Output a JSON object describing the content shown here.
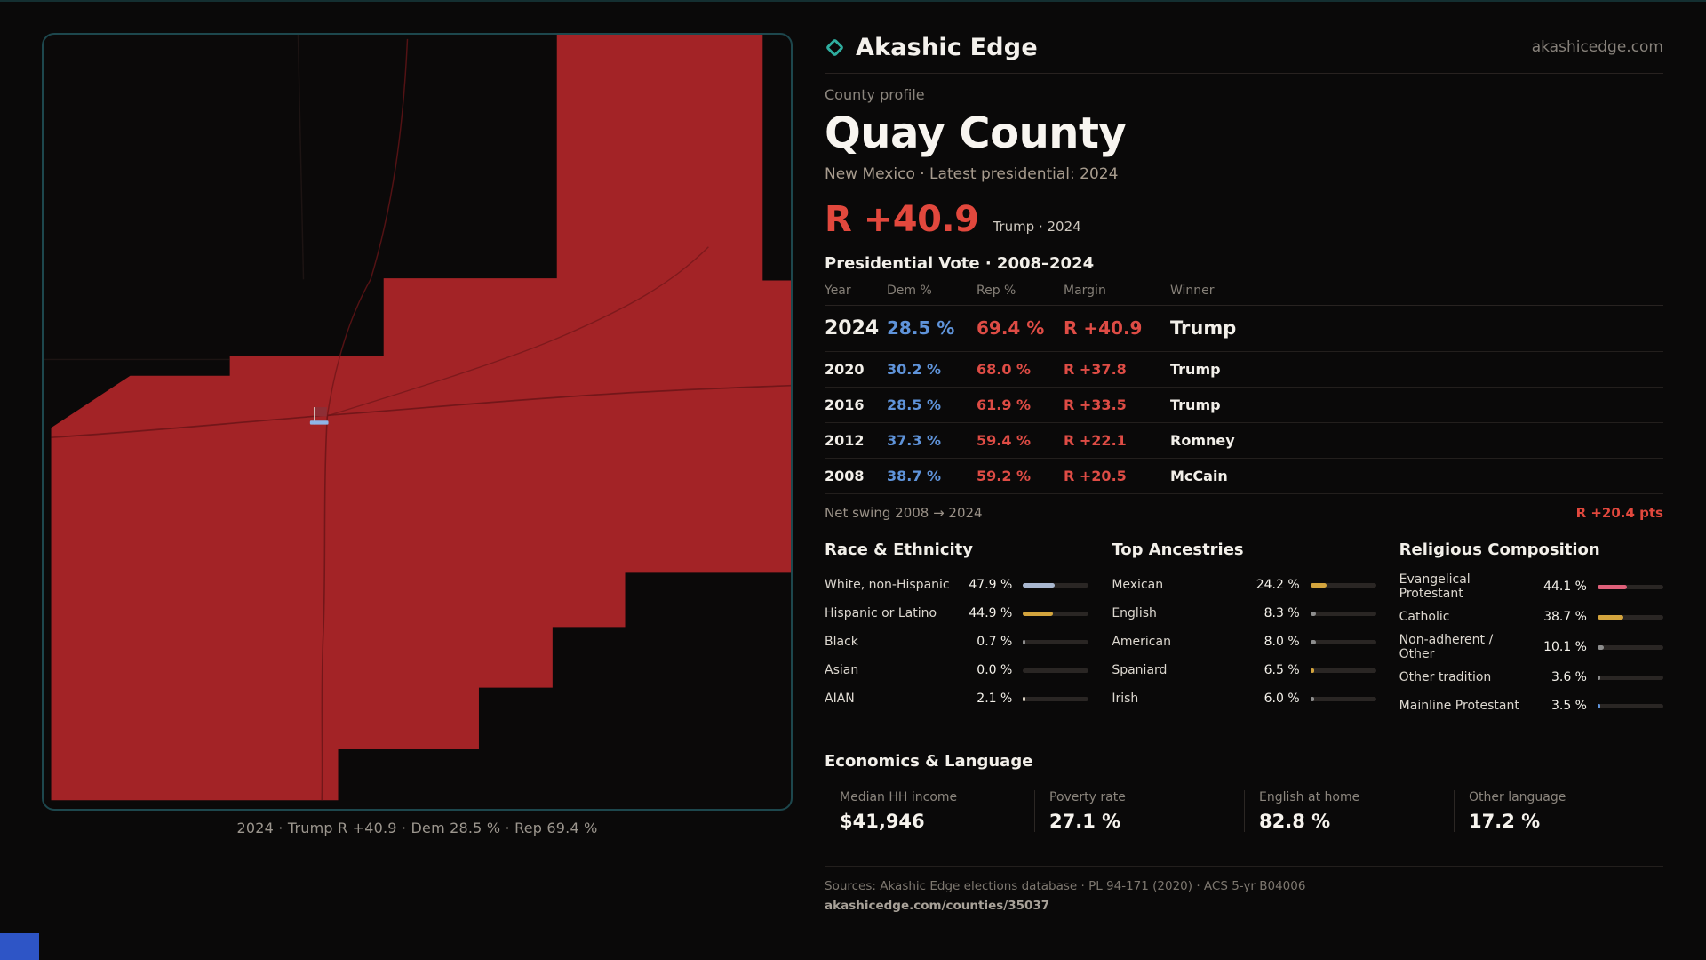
{
  "brand": {
    "name": "Akashic Edge",
    "domain": "akashicedge.com",
    "logo": "diamond-icon",
    "accent_teal": "#2fae9f"
  },
  "colors": {
    "map_red": "#a32326",
    "headline_red": "#e2483d",
    "rep_red": "#de4c45",
    "dem_blue": "#5f93d9",
    "gold": "#d3a43d",
    "steel": "#a9b7cf",
    "pink": "#e0607a"
  },
  "map": {
    "caption": "2024 · Trump R +40.9 · Dem 28.5 % · Rep 69.4 %"
  },
  "profile": {
    "kicker": "County profile",
    "title": "Quay County",
    "subtitle": "New Mexico · Latest presidential: 2024",
    "headline_margin": "R +40.9",
    "headline_note": "Trump · 2024",
    "table_title": "Presidential Vote · 2008–2024"
  },
  "vote_table": {
    "columns": [
      "Year",
      "Dem %",
      "Rep %",
      "Margin",
      "Winner"
    ],
    "rows": [
      {
        "year": "2024",
        "dem": "28.5 %",
        "rep": "69.4 %",
        "margin": "R +40.9",
        "winner": "Trump",
        "highlight": true
      },
      {
        "year": "2020",
        "dem": "30.2 %",
        "rep": "68.0 %",
        "margin": "R +37.8",
        "winner": "Trump",
        "highlight": false
      },
      {
        "year": "2016",
        "dem": "28.5 %",
        "rep": "61.9 %",
        "margin": "R +33.5",
        "winner": "Trump",
        "highlight": false
      },
      {
        "year": "2012",
        "dem": "37.3 %",
        "rep": "59.4 %",
        "margin": "R +22.1",
        "winner": "Romney",
        "highlight": false
      },
      {
        "year": "2008",
        "dem": "38.7 %",
        "rep": "59.2 %",
        "margin": "R +20.5",
        "winner": "McCain",
        "highlight": false
      }
    ],
    "net_swing_label": "Net swing 2008 → 2024",
    "net_swing_value": "R +20.4 pts"
  },
  "demographics": [
    {
      "title": "Race & Ethnicity",
      "rows": [
        {
          "label": "White, non-Hispanic",
          "value": "47.9 %",
          "pct": 47.9,
          "color": "#a9b7cf"
        },
        {
          "label": "Hispanic or Latino",
          "value": "44.9 %",
          "pct": 44.9,
          "color": "#d3a43d"
        },
        {
          "label": "Black",
          "value": "0.7 %",
          "pct": 0.7,
          "color": "#8d8d8d"
        },
        {
          "label": "Asian",
          "value": "0.0 %",
          "pct": 0.0,
          "color": "#8d8d8d"
        },
        {
          "label": "AIAN",
          "value": "2.1 %",
          "pct": 2.1,
          "color": "#d9d0c2"
        }
      ]
    },
    {
      "title": "Top Ancestries",
      "rows": [
        {
          "label": "Mexican",
          "value": "24.2 %",
          "pct": 24.2,
          "color": "#d3a43d"
        },
        {
          "label": "English",
          "value": "8.3 %",
          "pct": 8.3,
          "color": "#8d8d8d"
        },
        {
          "label": "American",
          "value": "8.0 %",
          "pct": 8.0,
          "color": "#8d8d8d"
        },
        {
          "label": "Spaniard",
          "value": "6.5 %",
          "pct": 6.5,
          "color": "#d3a43d"
        },
        {
          "label": "Irish",
          "value": "6.0 %",
          "pct": 6.0,
          "color": "#8d8d8d"
        }
      ]
    },
    {
      "title": "Religious Composition",
      "rows": [
        {
          "label": "Evangelical Protestant",
          "value": "44.1 %",
          "pct": 44.1,
          "color": "#e0607a"
        },
        {
          "label": "Catholic",
          "value": "38.7 %",
          "pct": 38.7,
          "color": "#d3a43d"
        },
        {
          "label": "Non-adherent / Other",
          "value": "10.1 %",
          "pct": 10.1,
          "color": "#8d8d8d"
        },
        {
          "label": "Other tradition",
          "value": "3.6 %",
          "pct": 3.6,
          "color": "#8d8d8d"
        },
        {
          "label": "Mainline Protestant",
          "value": "3.5 %",
          "pct": 3.5,
          "color": "#5f93d9"
        }
      ]
    }
  ],
  "economics": {
    "title": "Economics & Language",
    "stats": [
      {
        "label": "Median HH income",
        "value": "$41,946"
      },
      {
        "label": "Poverty rate",
        "value": "27.1 %"
      },
      {
        "label": "English at home",
        "value": "82.8 %"
      },
      {
        "label": "Other language",
        "value": "17.2 %"
      }
    ]
  },
  "footer": {
    "sources": "Sources: Akashic Edge elections database · PL 94-171 (2020) · ACS 5-yr B04006",
    "permalink": "akashicedge.com/counties/35037"
  }
}
